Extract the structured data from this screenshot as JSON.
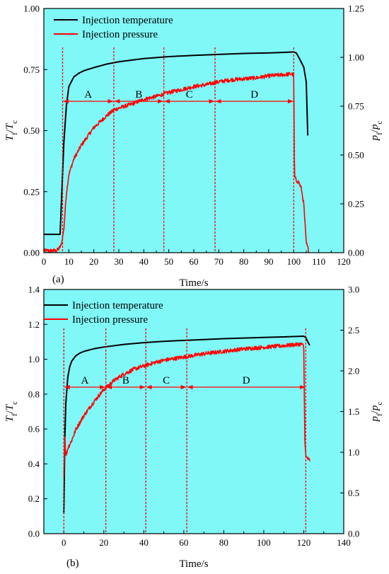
{
  "colors": {
    "plot_background": "#80F8F8",
    "temperature": "#000000",
    "pressure": "#FF0000",
    "phase_marker": "#FF0000"
  },
  "chart_data": [
    {
      "type": "line",
      "panel_label": "(a)",
      "xlabel": "Time/s",
      "ylabel_left": {
        "main": "T",
        "sub1": "f",
        "slash": "/",
        "main2": "T",
        "sub2": "c"
      },
      "ylabel_right": {
        "main": "p",
        "sub1": "f",
        "slash": "/",
        "main2": "p",
        "sub2": "c"
      },
      "xlim": [
        0,
        120
      ],
      "xticks": [
        0,
        10,
        20,
        30,
        40,
        50,
        60,
        70,
        80,
        90,
        100,
        110,
        120
      ],
      "ylim_left": [
        0,
        1
      ],
      "yticks_left": [
        "0.00",
        "0.25",
        "0.50",
        "0.75",
        "1.00"
      ],
      "ylim_right": [
        0,
        1.25
      ],
      "yticks_right": [
        "0.00",
        "0.25",
        "0.50",
        "0.75",
        "1.00",
        "1.25"
      ],
      "legend_position": "top-left",
      "series": [
        {
          "name": "Injection temperature",
          "axis": "left",
          "x": [
            0,
            6.5,
            7,
            8,
            9,
            10,
            12,
            14,
            16,
            20,
            25,
            30,
            40,
            50,
            60,
            70,
            80,
            90,
            95,
            100,
            101,
            102,
            103,
            104,
            105,
            105.6
          ],
          "y": [
            0.075,
            0.075,
            0.2,
            0.45,
            0.6,
            0.68,
            0.72,
            0.735,
            0.745,
            0.758,
            0.772,
            0.782,
            0.795,
            0.803,
            0.808,
            0.812,
            0.816,
            0.818,
            0.82,
            0.822,
            0.818,
            0.8,
            0.78,
            0.76,
            0.7,
            0.48
          ]
        },
        {
          "name": "Injection pressure",
          "axis": "right",
          "noisy": true,
          "x": [
            0,
            5,
            6,
            7,
            8,
            9,
            10,
            12,
            15,
            20,
            25,
            28,
            30,
            35,
            40,
            45,
            50,
            55,
            60,
            65,
            70,
            75,
            80,
            85,
            90,
            95,
            99,
            100,
            100.3,
            101,
            102,
            103,
            104,
            105,
            106
          ],
          "y": [
            0.01,
            0.01,
            0.02,
            0.04,
            0.12,
            0.3,
            0.4,
            0.48,
            0.55,
            0.64,
            0.7,
            0.73,
            0.74,
            0.76,
            0.785,
            0.8,
            0.82,
            0.835,
            0.85,
            0.86,
            0.875,
            0.885,
            0.89,
            0.895,
            0.905,
            0.91,
            0.915,
            0.91,
            0.39,
            0.37,
            0.36,
            0.33,
            0.25,
            0.05,
            0.01
          ]
        }
      ],
      "phase_lines_x": [
        7.5,
        28,
        48,
        68.5,
        100
      ],
      "phase_labels": [
        "A",
        "B",
        "C",
        "D"
      ],
      "phase_arrow_y_left": 0.62
    },
    {
      "type": "line",
      "panel_label": "(b)",
      "xlabel": "Time/s",
      "ylabel_left": {
        "main": "T",
        "sub1": "f",
        "slash": "/",
        "main2": "T",
        "sub2": "c"
      },
      "ylabel_right": {
        "main": "p",
        "sub1": "f",
        "slash": "/",
        "main2": "p",
        "sub2": "c"
      },
      "xlim": [
        -10,
        140
      ],
      "xticks": [
        0,
        20,
        40,
        60,
        80,
        100,
        120,
        140
      ],
      "ylim_left": [
        0,
        1.4
      ],
      "yticks_left": [
        "0.0",
        "0.2",
        "0.4",
        "0.6",
        "0.8",
        "1.0",
        "1.2",
        "1.4"
      ],
      "ylim_right": [
        0,
        3.0
      ],
      "yticks_right": [
        "0.0",
        "0.5",
        "1.0",
        "1.5",
        "2.0",
        "2.5",
        "3.0"
      ],
      "legend_position": "top-left",
      "series": [
        {
          "name": "Injection temperature",
          "axis": "left",
          "x": [
            0,
            0.5,
            1,
            2,
            3,
            4,
            6,
            8,
            10,
            15,
            20,
            30,
            40,
            50,
            60,
            80,
            100,
            110,
            120,
            121,
            122,
            123
          ],
          "y": [
            0.12,
            0.55,
            0.75,
            0.9,
            0.96,
            0.99,
            1.02,
            1.035,
            1.045,
            1.06,
            1.07,
            1.085,
            1.095,
            1.103,
            1.108,
            1.118,
            1.125,
            1.128,
            1.132,
            1.125,
            1.1,
            1.08
          ]
        },
        {
          "name": "Injection pressure",
          "axis": "right",
          "noisy": true,
          "x": [
            0,
            0.5,
            1,
            2,
            4,
            6,
            10,
            15,
            20,
            25,
            30,
            35,
            40,
            45,
            50,
            55,
            60,
            65,
            70,
            80,
            90,
            100,
            110,
            115,
            119,
            120,
            120.5,
            121,
            122,
            123
          ],
          "y": [
            0.7,
            1.2,
            0.95,
            1.05,
            1.15,
            1.28,
            1.45,
            1.62,
            1.77,
            1.88,
            1.96,
            2.02,
            2.06,
            2.1,
            2.13,
            2.15,
            2.17,
            2.19,
            2.21,
            2.24,
            2.27,
            2.29,
            2.31,
            2.32,
            2.33,
            2.3,
            1.2,
            0.95,
            0.92,
            0.9
          ]
        }
      ],
      "phase_lines_x": [
        0,
        21,
        41,
        61.5,
        121
      ],
      "phase_labels": [
        "A",
        "B",
        "C",
        "D"
      ],
      "phase_arrow_y_left": 0.84
    }
  ]
}
